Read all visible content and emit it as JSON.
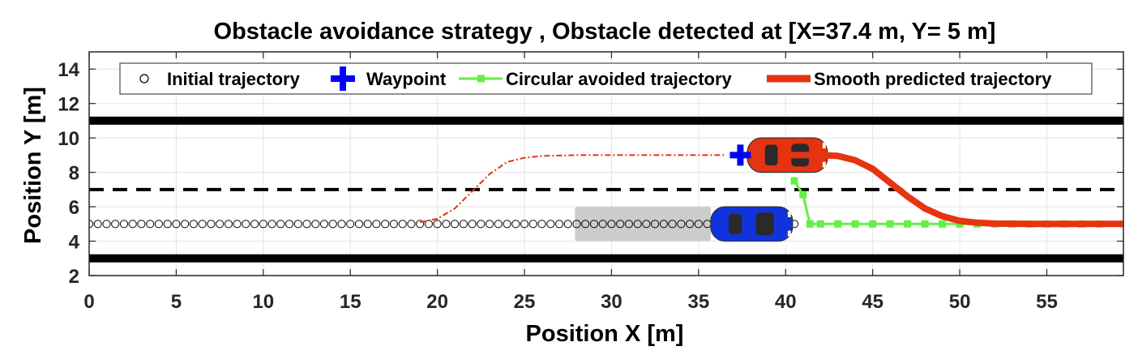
{
  "chart_data": {
    "type": "scatter",
    "title": "Obstacle avoidance strategy , Obstacle detected at [X=37.4 m, Y= 5 m]",
    "xlabel": "Position X [m]",
    "ylabel": "Position Y [m]",
    "xlim": [
      0,
      59.4
    ],
    "ylim": [
      2,
      15
    ],
    "xticks": [
      0,
      5,
      10,
      15,
      20,
      25,
      30,
      35,
      40,
      45,
      50,
      55
    ],
    "yticks": [
      2,
      4,
      6,
      8,
      10,
      12,
      14
    ],
    "grid": true,
    "legend_position": "top",
    "legend": [
      {
        "label": "Initial trajectory",
        "marker": "circle",
        "color": "#000000"
      },
      {
        "label": "Waypoint",
        "marker": "plus",
        "color": "#0000ff"
      },
      {
        "label": "Circular avoided trajectory",
        "marker": "square-line",
        "color": "#66ee44"
      },
      {
        "label": "Smooth predicted trajectory",
        "marker": "thick-line",
        "color": "#e63312"
      }
    ],
    "lane_lines": [
      {
        "y": 11,
        "style": "solid",
        "color": "#000000"
      },
      {
        "y": 7,
        "style": "dashed",
        "color": "#000000"
      },
      {
        "y": 3,
        "style": "solid",
        "color": "#000000"
      }
    ],
    "initial_trajectory": {
      "x_start": 0,
      "x_end": 40.8,
      "step": 0.5,
      "y": 5
    },
    "waypoint": {
      "x": 37.4,
      "y": 9
    },
    "circular_avoided_trajectory": {
      "x": [
        40.5,
        41.0,
        41.4,
        42.0,
        43.0,
        44.0,
        45.0,
        46.0,
        47.0,
        48.0,
        49.0,
        50.0,
        51.0,
        52.0,
        53.0,
        54.0,
        55.0,
        56.0,
        57.0,
        58.0,
        59.4
      ],
      "y": [
        7.5,
        6.7,
        5.0,
        5.0,
        5.0,
        5.0,
        5.0,
        5.0,
        5.0,
        5.0,
        5.0,
        5.0,
        5.0,
        5.0,
        5.0,
        5.0,
        5.0,
        5.0,
        5.0,
        5.0,
        5.0
      ]
    },
    "smooth_predicted_trajectory_dashed": {
      "x": [
        19.0,
        20.0,
        21.0,
        22.0,
        23.0,
        24.0,
        25.0,
        26.0,
        28.0,
        30.0,
        33.0,
        36.5
      ],
      "y": [
        5.1,
        5.3,
        5.9,
        6.9,
        7.9,
        8.6,
        8.85,
        8.95,
        9.0,
        9.0,
        9.0,
        9.0
      ]
    },
    "smooth_predicted_trajectory": {
      "x": [
        40.0,
        42.0,
        43.0,
        44.0,
        45.0,
        46.0,
        47.0,
        48.0,
        49.0,
        50.0,
        51.0,
        52.0,
        54.0,
        56.0,
        59.4
      ],
      "y": [
        9.0,
        9.0,
        8.95,
        8.7,
        8.2,
        7.4,
        6.6,
        5.9,
        5.45,
        5.18,
        5.07,
        5.02,
        5.0,
        5.0,
        5.0
      ]
    },
    "obstacle": {
      "x": [
        27.9,
        35.7
      ],
      "y": [
        4.0,
        6.0
      ],
      "color": "#cccccc"
    },
    "cars": [
      {
        "name": "ego-car",
        "x": [
          37.8,
          42.4
        ],
        "y": [
          8.0,
          10.0
        ],
        "color": "#e63312"
      },
      {
        "name": "other-car",
        "x": [
          35.7,
          40.4
        ],
        "y": [
          4.0,
          6.0
        ],
        "color": "#1133dd"
      }
    ]
  }
}
